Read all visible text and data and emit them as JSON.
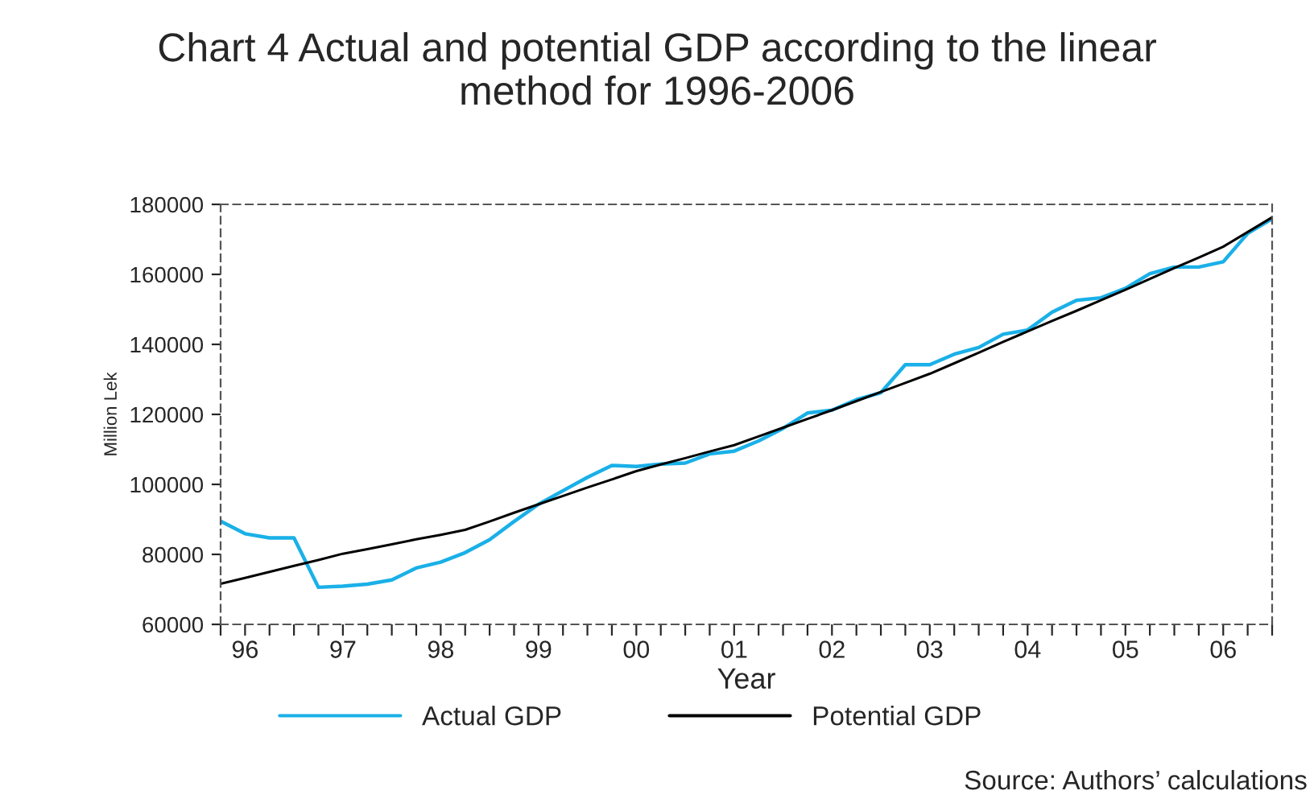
{
  "chart_data": {
    "type": "line",
    "title": "Chart 4 Actual and potential GDP according to the linear\nmethod for 1996-2006",
    "xlabel": "Year",
    "ylabel": "Million Lek",
    "categories": [
      null,
      "96",
      null,
      null,
      null,
      "97",
      null,
      null,
      null,
      "98",
      null,
      null,
      null,
      "99",
      null,
      null,
      null,
      "00",
      null,
      null,
      null,
      "01",
      null,
      null,
      null,
      "02",
      null,
      null,
      null,
      "03",
      null,
      null,
      null,
      "04",
      null,
      null,
      null,
      "05",
      null,
      null,
      null,
      "06",
      null,
      null
    ],
    "series": [
      {
        "name": "Actual GDP",
        "color": "#1ab0e8",
        "values": [
          89500,
          85900,
          84700,
          84700,
          70600,
          70900,
          71500,
          72700,
          76100,
          77800,
          80500,
          84200,
          89400,
          94300,
          98200,
          102000,
          105400,
          105100,
          105800,
          106100,
          108700,
          109500,
          112400,
          116000,
          120400,
          121200,
          124200,
          126200,
          134200,
          134200,
          137200,
          139100,
          142900,
          144100,
          149200,
          152600,
          153300,
          156000,
          160200,
          162100,
          162100,
          163600,
          171700,
          175900
        ]
      },
      {
        "name": "Potential GDP",
        "color": "#000000",
        "values": [
          71600,
          73300,
          75000,
          76700,
          78400,
          80200,
          81500,
          82900,
          84300,
          85600,
          87000,
          89400,
          91900,
          94300,
          96700,
          99100,
          101400,
          103800,
          105700,
          107500,
          109400,
          111200,
          113700,
          116200,
          118700,
          121200,
          123800,
          126400,
          129000,
          131600,
          134600,
          137600,
          140700,
          143700,
          146700,
          149600,
          152600,
          155600,
          158700,
          161800,
          164800,
          167900,
          172100,
          176300
        ]
      }
    ],
    "ylim": [
      60000,
      180000
    ],
    "yticks": [
      60000,
      80000,
      100000,
      120000,
      140000,
      160000,
      180000
    ],
    "grid": false,
    "legend": "bottom",
    "marker": "none",
    "line_style": "solid",
    "annotations": [
      "Source: Authors’ calculations"
    ]
  }
}
